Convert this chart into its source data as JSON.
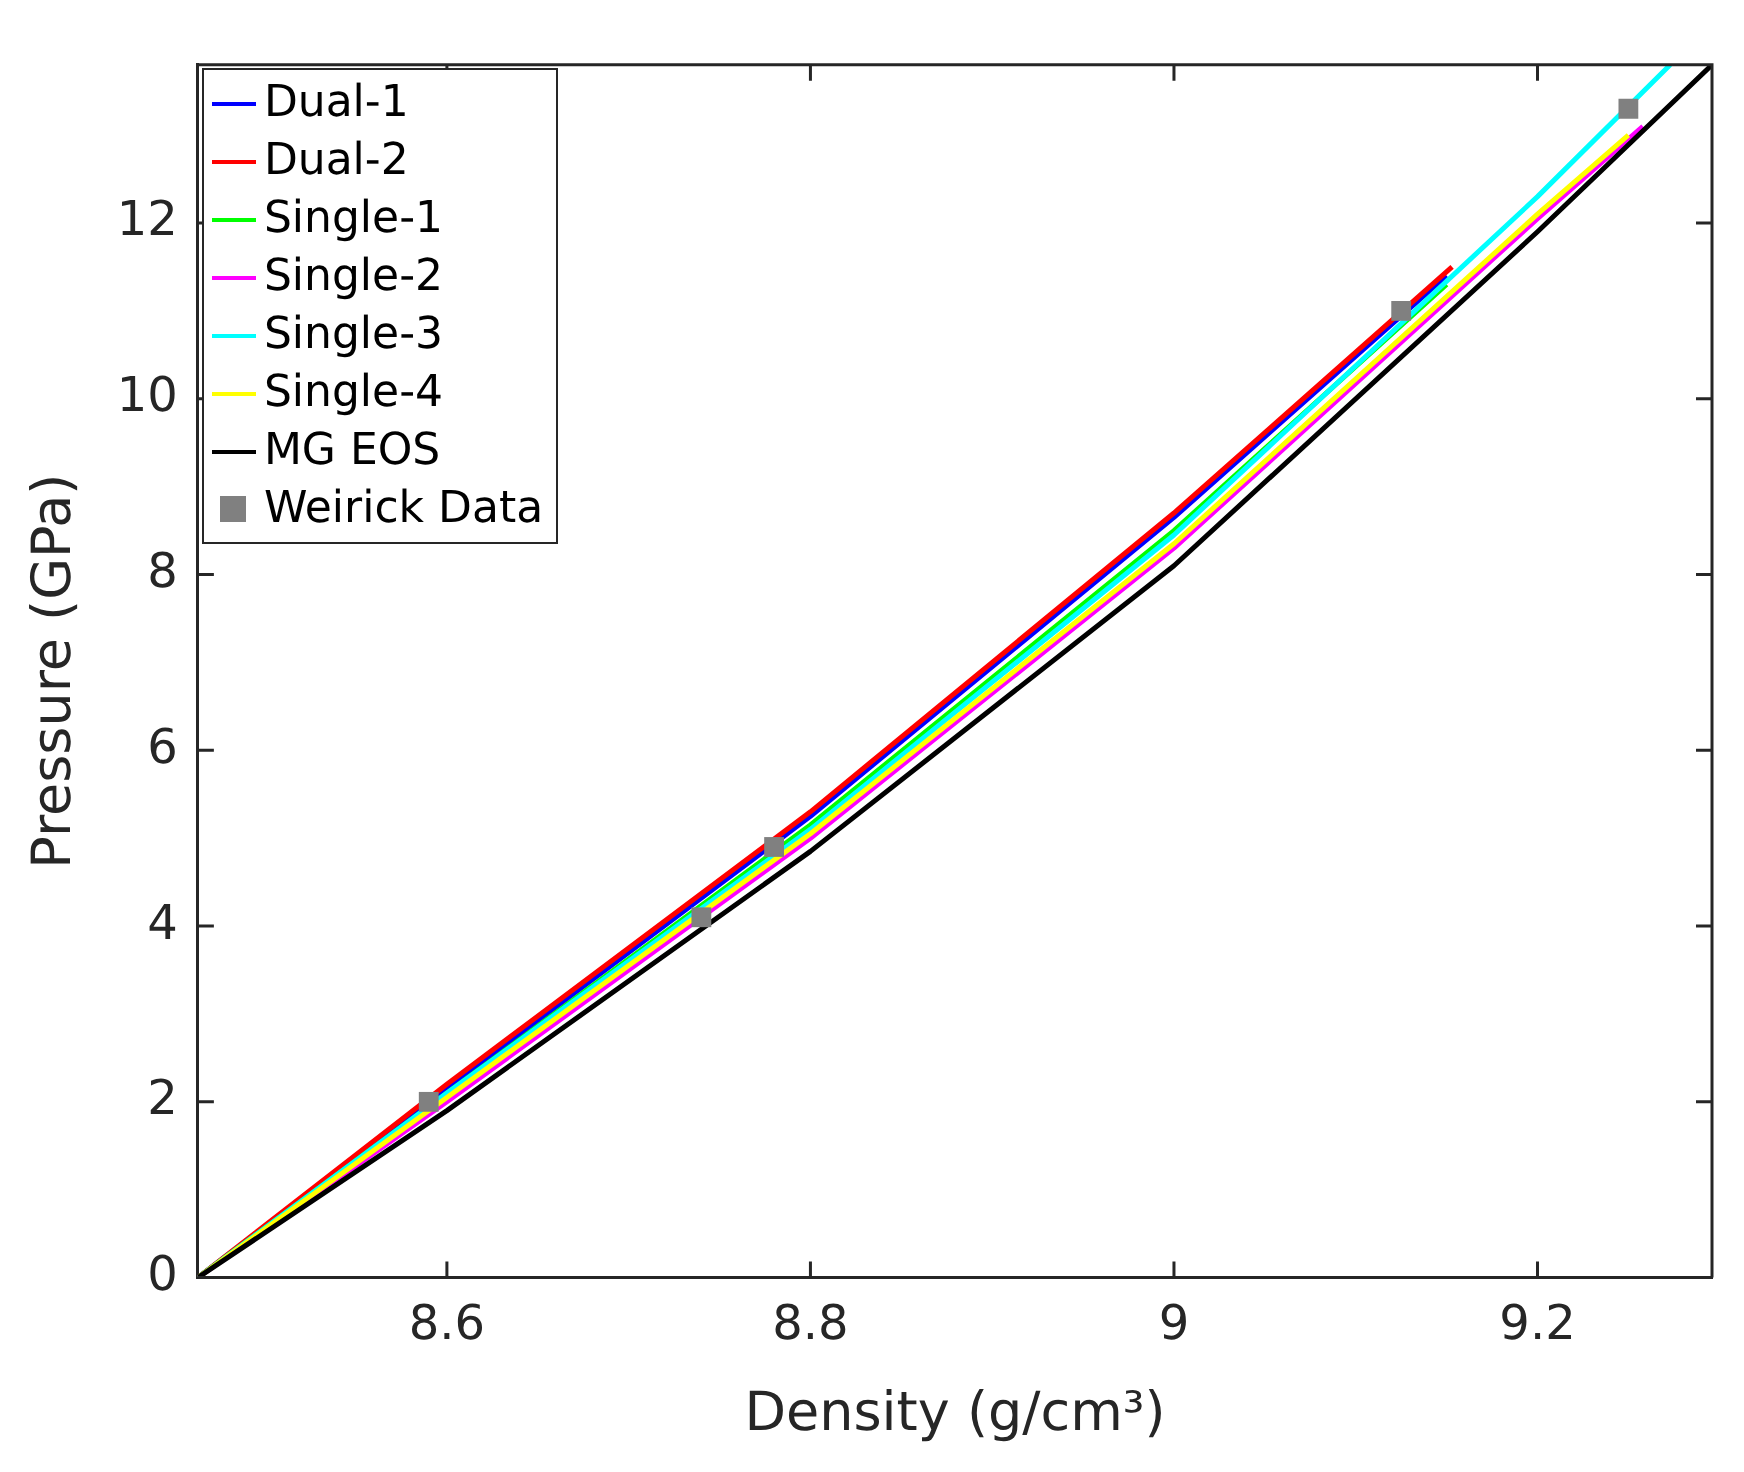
{
  "chart_data": {
    "type": "line",
    "xlabel": "Density (g/cm³)",
    "ylabel": "Pressure (GPa)",
    "xlim": [
      8.463,
      9.296
    ],
    "ylim": [
      0,
      13.8
    ],
    "xticks": [
      8.6,
      8.8,
      9,
      9.2
    ],
    "yticks": [
      0,
      2,
      4,
      6,
      8,
      10,
      12
    ],
    "grid": false,
    "legend": "top left",
    "marker": "none",
    "line_style": "solid",
    "series": [
      {
        "name": "Dual-1",
        "color": "#0000ff",
        "x": [
          8.463,
          8.6,
          8.8,
          9.0,
          9.15
        ],
        "values": [
          0,
          2.15,
          5.25,
          8.65,
          11.4
        ]
      },
      {
        "name": "Dual-2",
        "color": "#ff0000",
        "x": [
          8.463,
          8.6,
          8.8,
          9.0,
          9.153
        ],
        "values": [
          0,
          2.2,
          5.3,
          8.7,
          11.5
        ]
      },
      {
        "name": "Single-1",
        "color": "#00ff00",
        "x": [
          8.463,
          8.6,
          8.8,
          9.0,
          9.15
        ],
        "values": [
          0,
          2.1,
          5.15,
          8.5,
          11.3
        ]
      },
      {
        "name": "Single-2",
        "color": "#ff00ff",
        "x": [
          8.463,
          8.6,
          8.8,
          9.0,
          9.2,
          9.258
        ],
        "values": [
          0,
          2.0,
          5.0,
          8.3,
          12.05,
          13.1
        ]
      },
      {
        "name": "Single-3",
        "color": "#00ffff",
        "x": [
          8.463,
          8.6,
          8.8,
          9.0,
          9.2,
          9.273
        ],
        "values": [
          0,
          2.1,
          5.1,
          8.45,
          12.3,
          13.8
        ]
      },
      {
        "name": "Single-4",
        "color": "#ffff00",
        "x": [
          8.463,
          8.6,
          8.8,
          9.0,
          9.2,
          9.25
        ],
        "values": [
          0,
          2.05,
          5.05,
          8.35,
          12.1,
          13.0
        ]
      },
      {
        "name": "MG EOS",
        "color": "#000000",
        "x": [
          8.463,
          8.6,
          8.8,
          9.0,
          9.2,
          9.296
        ],
        "values": [
          0,
          1.9,
          4.85,
          8.1,
          11.9,
          13.8
        ]
      },
      {
        "name": "Weirick Data",
        "type": "scatter",
        "marker": "square",
        "color": "#808080",
        "x": [
          8.59,
          8.74,
          8.78,
          9.125,
          9.25
        ],
        "values": [
          2.0,
          4.1,
          4.9,
          11.0,
          13.3
        ]
      }
    ]
  }
}
